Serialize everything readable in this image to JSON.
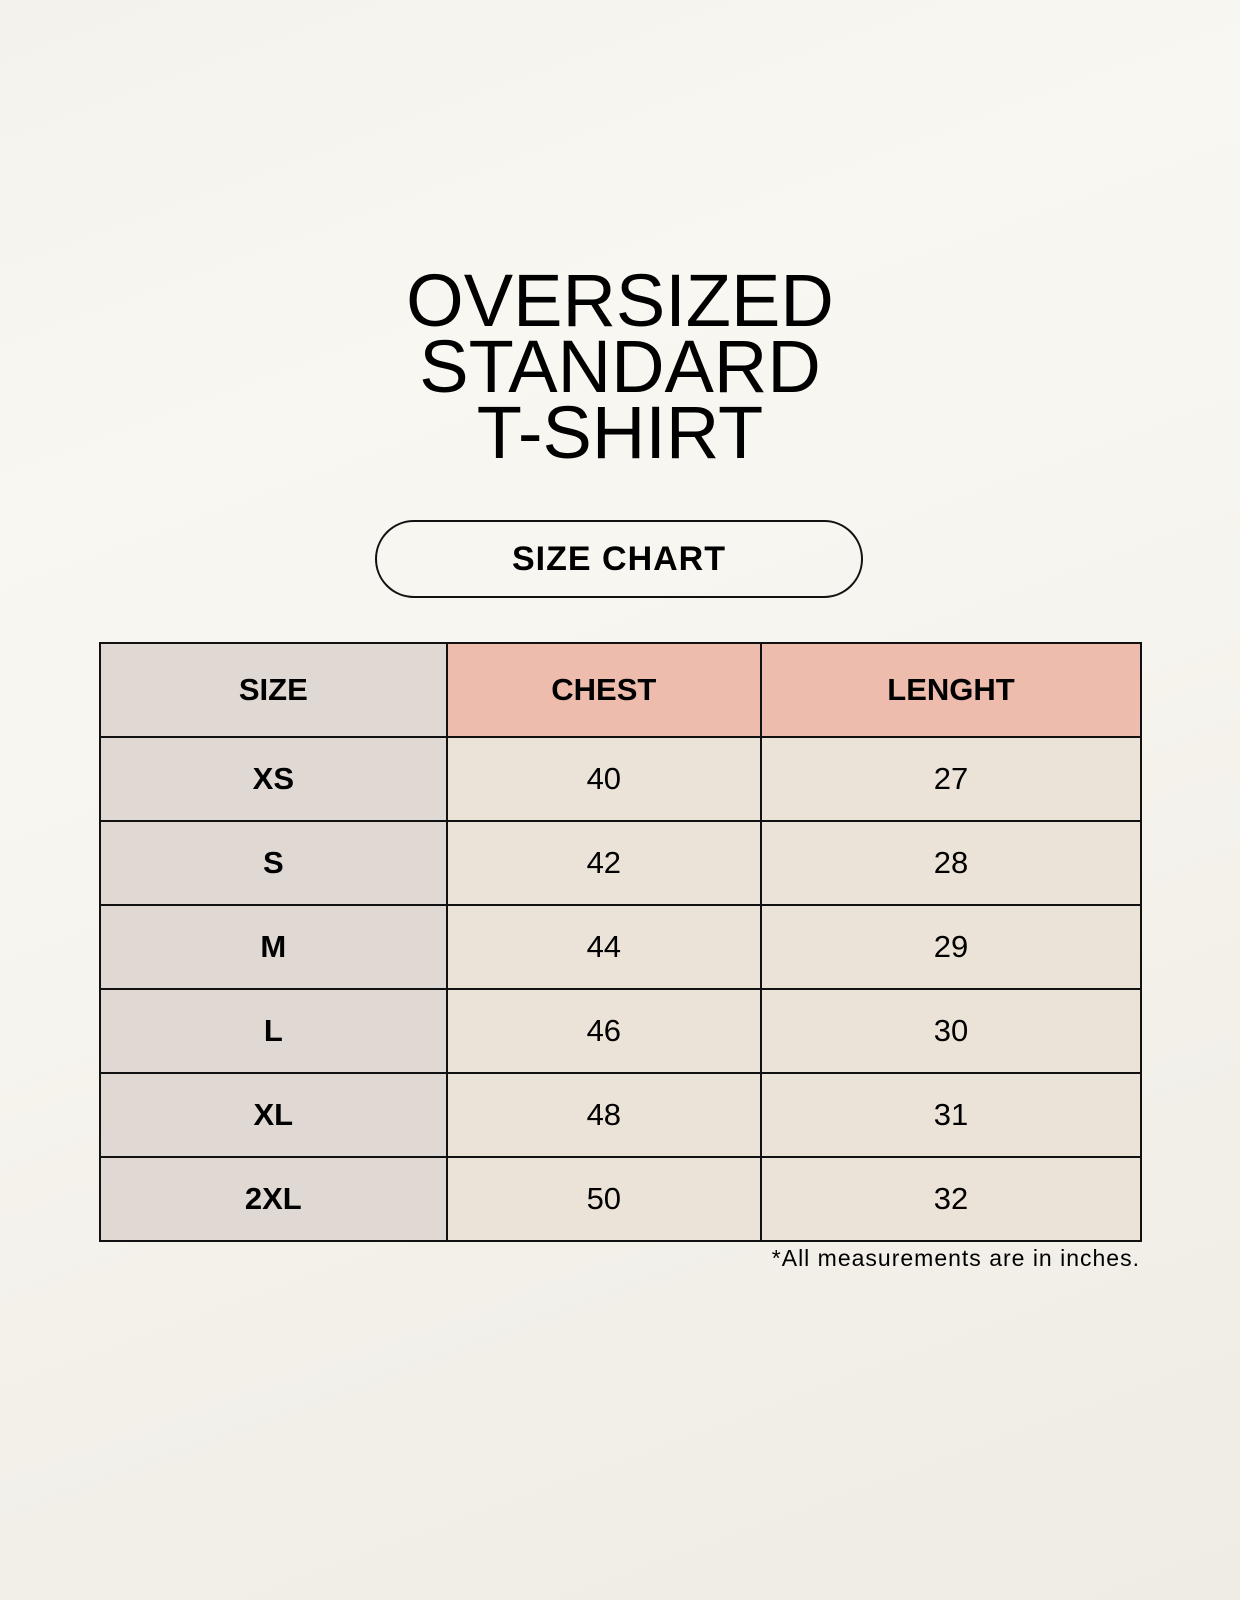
{
  "title_lines": [
    "OVERSIZED",
    "STANDARD",
    "T-SHIRT"
  ],
  "badge": "SIZE CHART",
  "table": {
    "headers": [
      "SIZE",
      "CHEST",
      "LENGHT"
    ],
    "rows": [
      [
        "XS",
        "40",
        "27"
      ],
      [
        "S",
        "42",
        "28"
      ],
      [
        "M",
        "44",
        "29"
      ],
      [
        "L",
        "46",
        "30"
      ],
      [
        "XL",
        "48",
        "31"
      ],
      [
        "2XL",
        "50",
        "32"
      ]
    ]
  },
  "note": "*All measurements are in inches.",
  "colors": {
    "size_column": "#e0d9d3",
    "header_accent": "#edbcad",
    "value_cells": "#ebe3d8"
  }
}
